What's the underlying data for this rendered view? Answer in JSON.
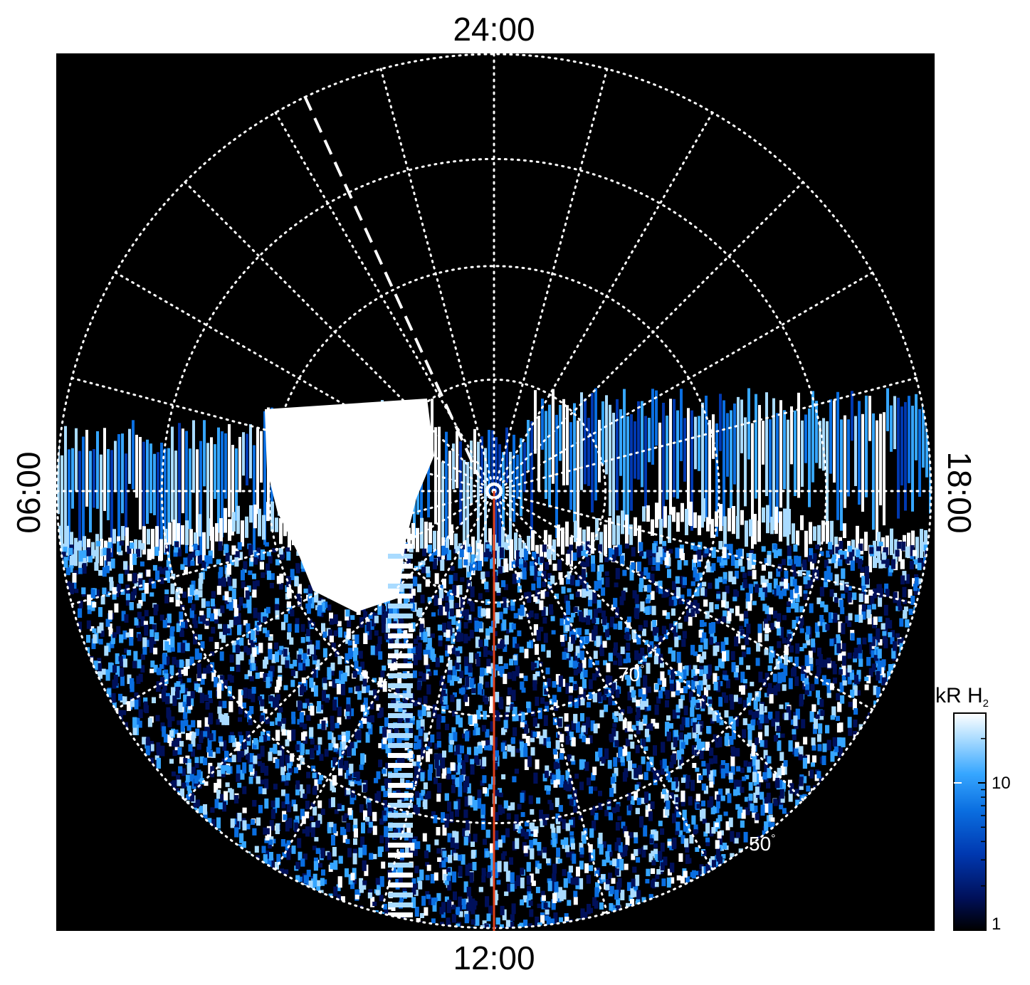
{
  "chart_data": {
    "type": "heatmap",
    "projection": "polar",
    "title": "",
    "local_time_labels": {
      "top": "24:00",
      "bottom": "12:00",
      "left": "06:00",
      "right": "18:00"
    },
    "latitude_labels": [
      {
        "text": "70",
        "unit": "°"
      },
      {
        "text": "50",
        "unit": "°"
      }
    ],
    "colorbar": {
      "title_main": "kR H",
      "title_sub": "2",
      "scale": "log",
      "ticks": [
        "10",
        "1"
      ],
      "colors": [
        "#000000",
        "#00105a",
        "#0038b0",
        "#0a6ee0",
        "#36a6ff",
        "#a9dbff",
        "#ffffff"
      ]
    },
    "grid": true,
    "colors": {
      "background": "#000000",
      "grid": "#ffffff",
      "meridian_marker": "#e0401a"
    }
  }
}
